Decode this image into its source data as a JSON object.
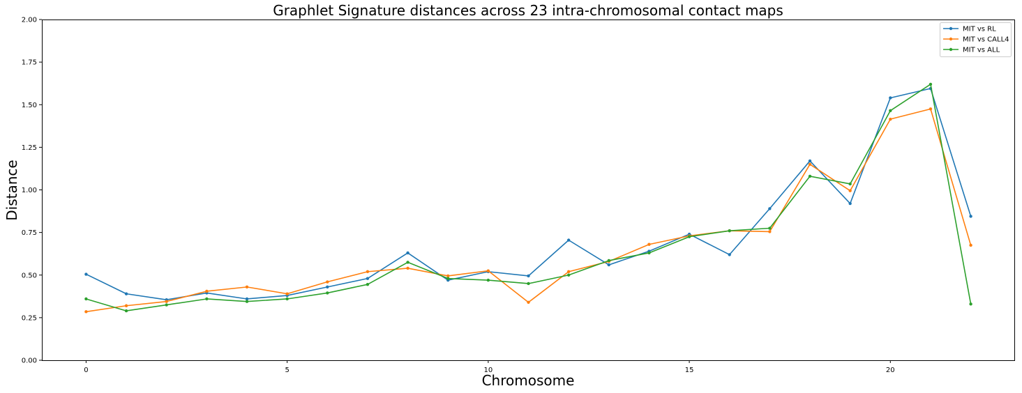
{
  "chart_data": {
    "type": "line",
    "title": "Graphlet Signature distances across 23 intra-chromosomal contact maps",
    "xlabel": "Chromosome",
    "ylabel": "Distance",
    "xlim": [
      -1.1,
      23.1
    ],
    "ylim": [
      0,
      2.0
    ],
    "xticks": [
      0,
      5,
      10,
      15,
      20
    ],
    "xtick_labels": [
      "0",
      "5",
      "10",
      "15",
      "20"
    ],
    "yticks": [
      0,
      0.25,
      0.5,
      0.75,
      1.0,
      1.25,
      1.5,
      1.75,
      2.0
    ],
    "ytick_labels": [
      "0.00",
      "0.25",
      "0.50",
      "0.75",
      "1.00",
      "1.25",
      "1.50",
      "1.75",
      "2.00"
    ],
    "grid": false,
    "legend_position": "top-right",
    "x": [
      0,
      1,
      2,
      3,
      4,
      5,
      6,
      7,
      8,
      9,
      10,
      11,
      12,
      13,
      14,
      15,
      16,
      17,
      18,
      19,
      20,
      21,
      22
    ],
    "series": [
      {
        "name": "MIT vs RL",
        "color": "#1f77b4",
        "values": [
          0.505,
          0.39,
          0.355,
          0.395,
          0.36,
          0.38,
          0.43,
          0.48,
          0.63,
          0.47,
          0.52,
          0.495,
          0.705,
          0.56,
          0.64,
          0.74,
          0.62,
          0.89,
          1.17,
          0.92,
          1.54,
          1.595,
          0.845
        ]
      },
      {
        "name": "MIT vs CALL4",
        "color": "#ff7f0e",
        "values": [
          0.285,
          0.32,
          0.345,
          0.405,
          0.43,
          0.39,
          0.46,
          0.52,
          0.54,
          0.495,
          0.525,
          0.34,
          0.52,
          0.58,
          0.68,
          0.73,
          0.76,
          0.755,
          1.15,
          0.995,
          1.415,
          1.475,
          0.675
        ]
      },
      {
        "name": "MIT vs ALL",
        "color": "#2ca02c",
        "values": [
          0.36,
          0.29,
          0.325,
          0.36,
          0.345,
          0.36,
          0.395,
          0.445,
          0.575,
          0.48,
          0.47,
          0.45,
          0.5,
          0.585,
          0.63,
          0.725,
          0.76,
          0.775,
          1.08,
          1.035,
          1.465,
          1.62,
          0.33
        ]
      }
    ]
  }
}
